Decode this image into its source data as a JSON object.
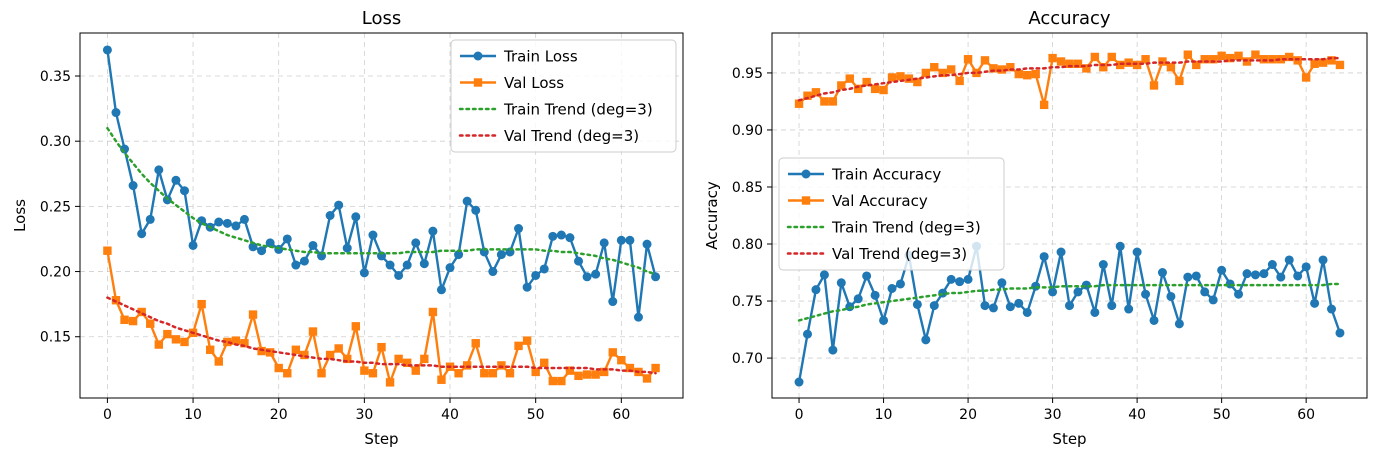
{
  "chart_data": [
    {
      "type": "line",
      "title": "Loss",
      "xlabel": "Step",
      "ylabel": "Loss",
      "xlim": [
        -3.2,
        67.2
      ],
      "ylim": [
        0.103,
        0.383
      ],
      "xticks": [
        0,
        10,
        20,
        30,
        40,
        50,
        60
      ],
      "yticks": [
        0.15,
        0.2,
        0.25,
        0.3,
        0.35
      ],
      "ytick_labels": [
        "0.15",
        "0.20",
        "0.25",
        "0.30",
        "0.35"
      ],
      "grid": true,
      "legend_position": "top-right",
      "x": [
        0,
        1,
        2,
        3,
        4,
        5,
        6,
        7,
        8,
        9,
        10,
        11,
        12,
        13,
        14,
        15,
        16,
        17,
        18,
        19,
        20,
        21,
        22,
        23,
        24,
        25,
        26,
        27,
        28,
        29,
        30,
        31,
        32,
        33,
        34,
        35,
        36,
        37,
        38,
        39,
        40,
        41,
        42,
        43,
        44,
        45,
        46,
        47,
        48,
        49,
        50,
        51,
        52,
        53,
        54,
        55,
        56,
        57,
        58,
        59,
        60,
        61,
        62,
        63,
        64
      ],
      "series": [
        {
          "name": "Train Loss",
          "style": "solid-marker-circle",
          "color": "#1f77b4",
          "values": [
            0.37,
            0.322,
            0.294,
            0.266,
            0.229,
            0.24,
            0.278,
            0.255,
            0.27,
            0.262,
            0.22,
            0.239,
            0.234,
            0.238,
            0.237,
            0.235,
            0.24,
            0.219,
            0.216,
            0.222,
            0.217,
            0.225,
            0.205,
            0.208,
            0.22,
            0.212,
            0.243,
            0.251,
            0.218,
            0.242,
            0.199,
            0.228,
            0.212,
            0.205,
            0.197,
            0.205,
            0.222,
            0.206,
            0.231,
            0.186,
            0.203,
            0.213,
            0.254,
            0.247,
            0.215,
            0.2,
            0.213,
            0.215,
            0.233,
            0.188,
            0.197,
            0.202,
            0.227,
            0.228,
            0.226,
            0.208,
            0.196,
            0.198,
            0.222,
            0.177,
            0.224,
            0.224,
            0.165,
            0.221,
            0.196
          ]
        },
        {
          "name": "Val Loss",
          "style": "solid-marker-square",
          "color": "#ff7f0e",
          "values": [
            0.216,
            0.178,
            0.163,
            0.162,
            0.169,
            0.16,
            0.144,
            0.152,
            0.148,
            0.146,
            0.153,
            0.175,
            0.14,
            0.131,
            0.146,
            0.147,
            0.145,
            0.167,
            0.139,
            0.138,
            0.126,
            0.122,
            0.14,
            0.136,
            0.154,
            0.122,
            0.136,
            0.141,
            0.133,
            0.158,
            0.124,
            0.122,
            0.142,
            0.115,
            0.133,
            0.13,
            0.124,
            0.133,
            0.169,
            0.117,
            0.127,
            0.122,
            0.128,
            0.145,
            0.122,
            0.122,
            0.128,
            0.122,
            0.143,
            0.147,
            0.123,
            0.13,
            0.116,
            0.116,
            0.124,
            0.12,
            0.121,
            0.121,
            0.123,
            0.138,
            0.132,
            0.126,
            0.123,
            0.118,
            0.126
          ]
        },
        {
          "name": "Train Trend (deg=3)",
          "style": "dotted",
          "color": "#2ca02c",
          "values": [
            0.31,
            0.3,
            0.291,
            0.283,
            0.275,
            0.268,
            0.262,
            0.256,
            0.251,
            0.246,
            0.241,
            0.237,
            0.234,
            0.231,
            0.228,
            0.226,
            0.224,
            0.222,
            0.22,
            0.219,
            0.218,
            0.217,
            0.216,
            0.215,
            0.215,
            0.214,
            0.214,
            0.214,
            0.214,
            0.214,
            0.214,
            0.214,
            0.214,
            0.214,
            0.214,
            0.215,
            0.215,
            0.215,
            0.215,
            0.216,
            0.216,
            0.216,
            0.216,
            0.217,
            0.217,
            0.217,
            0.217,
            0.217,
            0.217,
            0.217,
            0.217,
            0.216,
            0.216,
            0.215,
            0.215,
            0.214,
            0.213,
            0.212,
            0.21,
            0.209,
            0.207,
            0.205,
            0.203,
            0.2,
            0.198
          ]
        },
        {
          "name": "Val Trend (deg=3)",
          "style": "dotted",
          "color": "#d62728",
          "values": [
            0.18,
            0.177,
            0.174,
            0.171,
            0.168,
            0.165,
            0.162,
            0.16,
            0.157,
            0.155,
            0.153,
            0.151,
            0.149,
            0.147,
            0.146,
            0.144,
            0.143,
            0.141,
            0.14,
            0.139,
            0.138,
            0.137,
            0.136,
            0.135,
            0.134,
            0.133,
            0.133,
            0.132,
            0.131,
            0.131,
            0.13,
            0.13,
            0.129,
            0.129,
            0.129,
            0.128,
            0.128,
            0.128,
            0.128,
            0.127,
            0.127,
            0.127,
            0.127,
            0.127,
            0.127,
            0.127,
            0.127,
            0.127,
            0.127,
            0.127,
            0.126,
            0.126,
            0.126,
            0.126,
            0.126,
            0.126,
            0.126,
            0.125,
            0.125,
            0.125,
            0.124,
            0.124,
            0.123,
            0.123,
            0.122
          ]
        }
      ]
    },
    {
      "type": "line",
      "title": "Accuracy",
      "xlabel": "Step",
      "ylabel": "Accuracy",
      "xlim": [
        -3.2,
        67.2
      ],
      "ylim": [
        0.665,
        0.985
      ],
      "xticks": [
        0,
        10,
        20,
        30,
        40,
        50,
        60
      ],
      "yticks": [
        0.7,
        0.75,
        0.8,
        0.85,
        0.9,
        0.95
      ],
      "ytick_labels": [
        "0.70",
        "0.75",
        "0.80",
        "0.85",
        "0.90",
        "0.95"
      ],
      "grid": true,
      "legend_position": "center-left",
      "x": [
        0,
        1,
        2,
        3,
        4,
        5,
        6,
        7,
        8,
        9,
        10,
        11,
        12,
        13,
        14,
        15,
        16,
        17,
        18,
        19,
        20,
        21,
        22,
        23,
        24,
        25,
        26,
        27,
        28,
        29,
        30,
        31,
        32,
        33,
        34,
        35,
        36,
        37,
        38,
        39,
        40,
        41,
        42,
        43,
        44,
        45,
        46,
        47,
        48,
        49,
        50,
        51,
        52,
        53,
        54,
        55,
        56,
        57,
        58,
        59,
        60,
        61,
        62,
        63,
        64
      ],
      "series": [
        {
          "name": "Train Accuracy",
          "style": "solid-marker-circle",
          "color": "#1f77b4",
          "values": [
            0.679,
            0.721,
            0.76,
            0.773,
            0.707,
            0.766,
            0.745,
            0.752,
            0.772,
            0.755,
            0.733,
            0.761,
            0.765,
            0.79,
            0.747,
            0.716,
            0.746,
            0.757,
            0.769,
            0.767,
            0.769,
            0.798,
            0.746,
            0.744,
            0.766,
            0.745,
            0.748,
            0.74,
            0.763,
            0.789,
            0.758,
            0.793,
            0.746,
            0.758,
            0.764,
            0.74,
            0.782,
            0.746,
            0.798,
            0.743,
            0.793,
            0.756,
            0.733,
            0.775,
            0.754,
            0.73,
            0.771,
            0.772,
            0.758,
            0.751,
            0.777,
            0.765,
            0.756,
            0.774,
            0.773,
            0.774,
            0.782,
            0.771,
            0.786,
            0.772,
            0.78,
            0.748,
            0.786,
            0.743,
            0.722
          ]
        },
        {
          "name": "Val Accuracy",
          "style": "solid-marker-square",
          "color": "#ff7f0e",
          "values": [
            0.923,
            0.93,
            0.933,
            0.925,
            0.925,
            0.939,
            0.945,
            0.936,
            0.942,
            0.936,
            0.935,
            0.946,
            0.947,
            0.945,
            0.942,
            0.95,
            0.955,
            0.95,
            0.953,
            0.943,
            0.962,
            0.95,
            0.961,
            0.954,
            0.953,
            0.955,
            0.949,
            0.948,
            0.949,
            0.922,
            0.963,
            0.96,
            0.958,
            0.958,
            0.954,
            0.964,
            0.955,
            0.964,
            0.957,
            0.959,
            0.957,
            0.962,
            0.939,
            0.96,
            0.955,
            0.943,
            0.966,
            0.957,
            0.962,
            0.962,
            0.965,
            0.963,
            0.965,
            0.96,
            0.966,
            0.962,
            0.962,
            0.962,
            0.964,
            0.961,
            0.946,
            0.958,
            0.959,
            0.961,
            0.957
          ]
        },
        {
          "name": "Train Trend (deg=3)",
          "style": "dotted",
          "color": "#2ca02c",
          "values": [
            0.733,
            0.735,
            0.737,
            0.739,
            0.741,
            0.742,
            0.744,
            0.745,
            0.747,
            0.748,
            0.749,
            0.75,
            0.751,
            0.752,
            0.753,
            0.754,
            0.755,
            0.756,
            0.757,
            0.757,
            0.758,
            0.759,
            0.759,
            0.76,
            0.76,
            0.761,
            0.761,
            0.761,
            0.762,
            0.762,
            0.762,
            0.763,
            0.763,
            0.763,
            0.763,
            0.763,
            0.764,
            0.764,
            0.764,
            0.764,
            0.764,
            0.764,
            0.764,
            0.764,
            0.764,
            0.764,
            0.764,
            0.764,
            0.764,
            0.764,
            0.764,
            0.764,
            0.764,
            0.764,
            0.764,
            0.764,
            0.764,
            0.764,
            0.764,
            0.764,
            0.764,
            0.764,
            0.764,
            0.765,
            0.765
          ]
        },
        {
          "name": "Val Trend (deg=3)",
          "style": "dotted",
          "color": "#d62728",
          "values": [
            0.926,
            0.928,
            0.93,
            0.932,
            0.933,
            0.935,
            0.936,
            0.938,
            0.939,
            0.94,
            0.941,
            0.942,
            0.943,
            0.944,
            0.945,
            0.946,
            0.947,
            0.948,
            0.948,
            0.949,
            0.95,
            0.95,
            0.951,
            0.952,
            0.952,
            0.953,
            0.953,
            0.954,
            0.954,
            0.954,
            0.955,
            0.955,
            0.956,
            0.956,
            0.956,
            0.957,
            0.957,
            0.957,
            0.958,
            0.958,
            0.958,
            0.958,
            0.959,
            0.959,
            0.959,
            0.959,
            0.96,
            0.96,
            0.96,
            0.96,
            0.96,
            0.961,
            0.961,
            0.961,
            0.961,
            0.961,
            0.961,
            0.962,
            0.962,
            0.962,
            0.962,
            0.962,
            0.962,
            0.963,
            0.963
          ]
        }
      ]
    }
  ]
}
